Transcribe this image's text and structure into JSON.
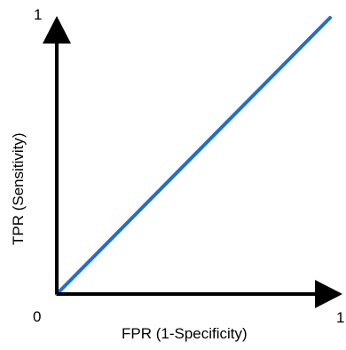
{
  "chart_data": {
    "type": "line",
    "title": "",
    "xlabel": "FPR (1-Specificity)",
    "ylabel": "TPR (Sensitivity)",
    "xlim": [
      0,
      1
    ],
    "ylim": [
      0,
      1
    ],
    "grid": false,
    "tick_labels": {
      "origin": "0",
      "x_max": "1",
      "y_max": "1"
    },
    "series": [
      {
        "color": "#1f6fd1",
        "x": [
          0,
          1
        ],
        "y": [
          0,
          1
        ]
      }
    ]
  },
  "colors": {
    "axis": "#000000",
    "line": "#1f6fd1"
  }
}
